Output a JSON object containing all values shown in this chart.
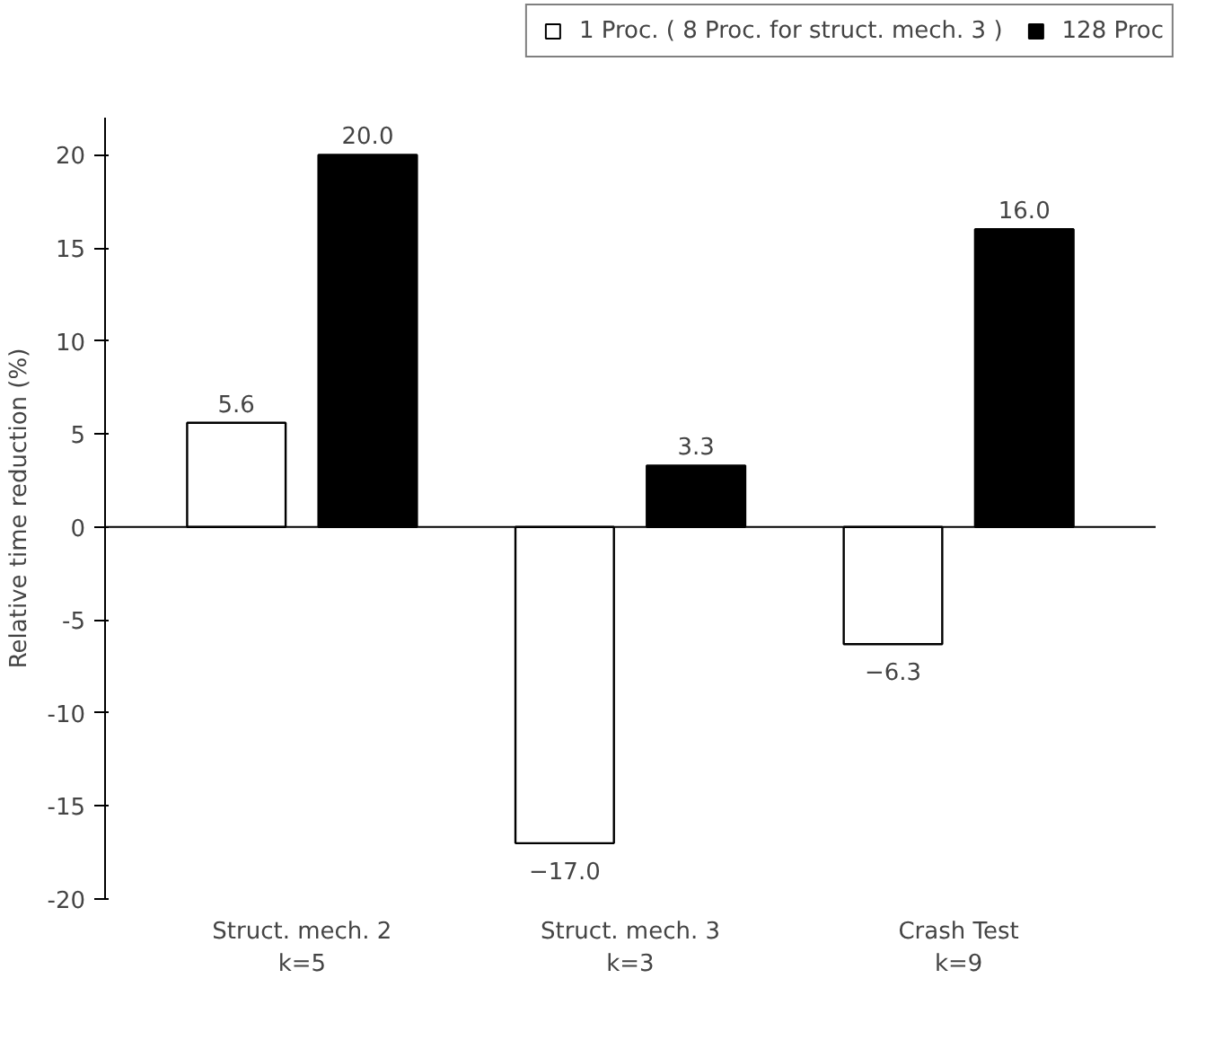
{
  "chart_data": {
    "type": "bar",
    "ylabel": "Relative time reduction (%)",
    "categories": [
      "Struct. mech. 2\nk=5",
      "Struct. mech. 3\nk=3",
      "Crash Test\nk=9"
    ],
    "series": [
      {
        "name": "1 Proc. ( 8 Proc. for struct. mech. 3 )",
        "color": "#ffffff",
        "values": [
          5.6,
          -17.0,
          -6.3
        ],
        "value_labels": [
          "5.6",
          "−17.0",
          "−6.3"
        ]
      },
      {
        "name": "128 Proc",
        "color": "#000000",
        "values": [
          20.0,
          3.3,
          16.0
        ],
        "value_labels": [
          "20.0",
          "3.3",
          "16.0"
        ]
      }
    ],
    "ylim": [
      -20,
      22
    ],
    "yticks": [
      -20,
      -15,
      -10,
      -5,
      0,
      5,
      10,
      15,
      20
    ],
    "ref_lines": [
      {
        "axis": "y",
        "value": 0
      }
    ],
    "grid": false,
    "legend": "top right"
  }
}
